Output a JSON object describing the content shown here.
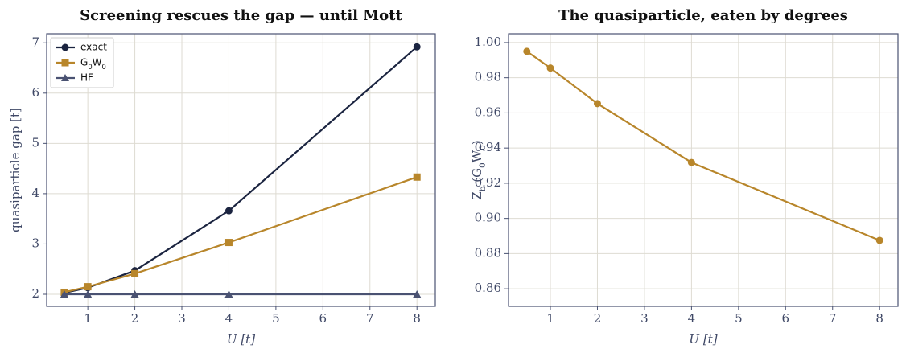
{
  "chart_data": [
    {
      "type": "line",
      "title": "Screening rescues the gap — until Mott",
      "x_label": "U  [t]",
      "y_label": "quasiparticle gap  [t]",
      "x": [
        0.5,
        1,
        2,
        4,
        8
      ],
      "series": [
        {
          "name": "exact",
          "color": "#1b2440",
          "marker": "circle",
          "values": [
            2.03,
            2.13,
            2.47,
            3.66,
            6.92
          ]
        },
        {
          "name": "G_0W_0",
          "color": "#b8862b",
          "marker": "square",
          "values": [
            2.04,
            2.15,
            2.41,
            3.03,
            4.33
          ]
        },
        {
          "name": "HF",
          "color": "#4a5272",
          "marker": "triangle",
          "values": [
            2,
            2,
            2,
            2,
            2
          ]
        }
      ],
      "xlim": [
        0.125,
        8.39
      ],
      "ylim": [
        1.76,
        7.18
      ],
      "xticks": [
        1,
        2,
        3,
        4,
        5,
        6,
        7,
        8
      ],
      "yticks": [
        2,
        3,
        4,
        5,
        6,
        7
      ],
      "grid": true,
      "legend": "upper-left"
    },
    {
      "type": "line",
      "title": "The quasiparticle, eaten by degrees",
      "x_label": "U  [t]",
      "y_label": "Z_b (G_0W_0)",
      "x": [
        0.5,
        1,
        2,
        4,
        8
      ],
      "values": [
        0.995,
        0.9855,
        0.9653,
        0.9318,
        0.8875
      ],
      "color": "#b8862b",
      "marker": "circle",
      "xlim": [
        0.11,
        8.39
      ],
      "ylim": [
        0.85,
        1.005
      ],
      "xticks": [
        1,
        2,
        3,
        4,
        5,
        6,
        7,
        8
      ],
      "yticks": [
        0.86,
        0.88,
        {
          "value": 0.9,
          "label": "0.90"
        },
        0.92,
        0.94,
        0.96,
        0.98,
        {
          "value": 1,
          "label": "1.00"
        }
      ],
      "grid": true
    }
  ]
}
